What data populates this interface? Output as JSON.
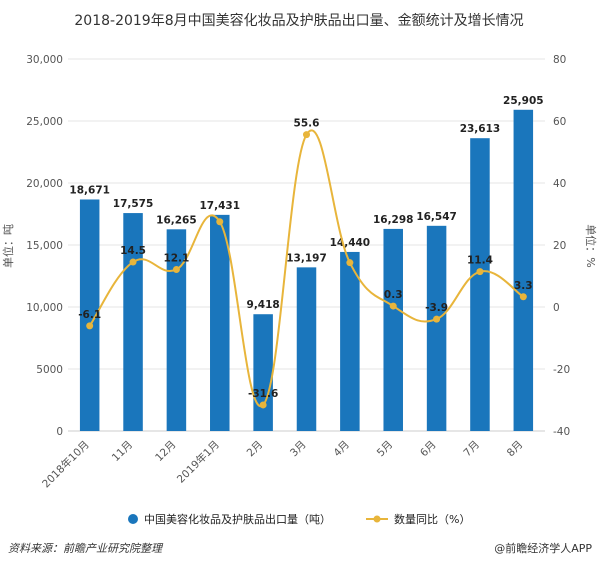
{
  "chart_data": {
    "type": "bar",
    "title": "2018-2019年8月中国美容化妆品及护肤品出口量、金额统计及增长情况",
    "categories": [
      "2018年10月",
      "11月",
      "12月",
      "2019年1月",
      "2月",
      "3月",
      "4月",
      "5月",
      "6月",
      "7月",
      "8月"
    ],
    "series": [
      {
        "name": "中国美容化妆品及护肤品出口量（吨）",
        "type": "bar",
        "axis": "left",
        "color": "#1a76bc",
        "values": [
          18671,
          17575,
          16265,
          17431,
          9418,
          13197,
          14440,
          16298,
          16547,
          23613,
          25905
        ],
        "labels": [
          "18,671",
          "17,575",
          "16,265",
          "17,431",
          "9,418",
          "13,197",
          "14,440",
          "16,298",
          "16,547",
          "23,613",
          "25,905"
        ]
      },
      {
        "name": "数量同比（%）",
        "type": "line",
        "axis": "right",
        "color": "#e8b53b",
        "values": [
          -6.1,
          14.5,
          12.1,
          27.5,
          -31.6,
          55.6,
          14.3,
          0.3,
          -3.9,
          11.4,
          3.3
        ],
        "labels": [
          "-6.1",
          "14.5",
          "12.1",
          "",
          "-31.6",
          "55.6",
          "",
          "0.3",
          "-3.9",
          "11.4",
          "3.3"
        ]
      }
    ],
    "ylabel": "单位：吨",
    "ylabel_right": "单位：%",
    "ylim": [
      0,
      30000
    ],
    "ylim_right": [
      -40,
      80
    ],
    "yticks": [
      "0",
      "5000",
      "10,000",
      "15,000",
      "20,000",
      "25,000",
      "30,000"
    ],
    "yticks_right": [
      "-40",
      "-20",
      "0",
      "20",
      "40",
      "60",
      "80"
    ],
    "grid": true,
    "legend": "bottom"
  },
  "footer": {
    "source": "资料来源：前瞻产业研究院整理",
    "brand": "@前瞻经济学人APP"
  }
}
